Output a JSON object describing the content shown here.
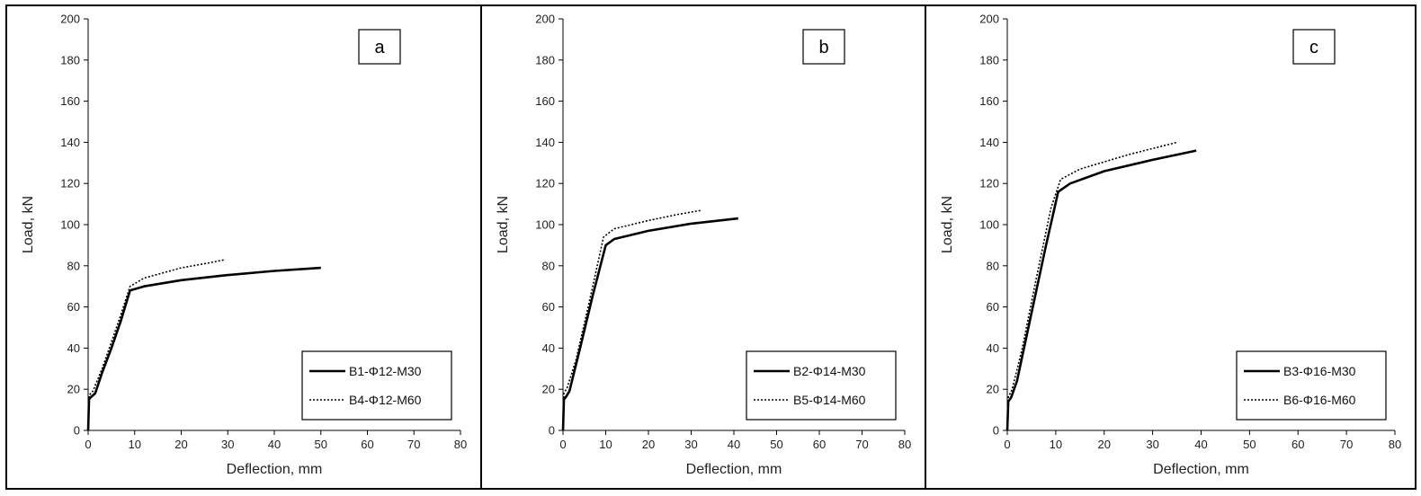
{
  "chart_data": [
    {
      "type": "line",
      "panel_label": "a",
      "xlabel": "Deflection, mm",
      "ylabel": "Load, kN",
      "xlim": [
        0,
        80
      ],
      "ylim": [
        0,
        200
      ],
      "xticks": [
        0,
        10,
        20,
        30,
        40,
        50,
        60,
        70,
        80
      ],
      "yticks": [
        0,
        20,
        40,
        60,
        80,
        100,
        120,
        140,
        160,
        180,
        200
      ],
      "grid": false,
      "legend_position": "bottom-right",
      "panel_label_position": "top-right",
      "series": [
        {
          "name": "B1-Φ12-M30",
          "style": "solid",
          "color": "#000000",
          "x": [
            0,
            0.2,
            0.5,
            1.5,
            3,
            5,
            7,
            9,
            12,
            20,
            30,
            40,
            50
          ],
          "y": [
            0,
            15,
            16,
            18,
            28,
            40,
            53,
            68,
            70,
            73,
            75.5,
            77.5,
            79
          ]
        },
        {
          "name": "B4-Φ12-M60",
          "style": "dotted",
          "color": "#000000",
          "x": [
            0,
            0.2,
            1,
            3,
            5,
            7,
            9,
            12,
            20,
            25,
            29.5
          ],
          "y": [
            0,
            17,
            19,
            30,
            43,
            56,
            70,
            74,
            79,
            81,
            83
          ]
        }
      ]
    },
    {
      "type": "line",
      "panel_label": "b",
      "xlabel": "Deflection, mm",
      "ylabel": "Load, kN",
      "xlim": [
        0,
        80
      ],
      "ylim": [
        0,
        200
      ],
      "xticks": [
        0,
        10,
        20,
        30,
        40,
        50,
        60,
        70,
        80
      ],
      "yticks": [
        0,
        20,
        40,
        60,
        80,
        100,
        120,
        140,
        160,
        180,
        200
      ],
      "grid": false,
      "legend_position": "bottom-right",
      "panel_label_position": "top-right",
      "series": [
        {
          "name": "B2-Φ14-M30",
          "style": "solid",
          "color": "#000000",
          "x": [
            0,
            0.2,
            0.6,
            1.5,
            4,
            7,
            10,
            12,
            20,
            30,
            41
          ],
          "y": [
            0,
            15,
            16,
            19,
            40,
            66,
            90,
            93,
            97,
            100.5,
            103
          ]
        },
        {
          "name": "B5-Φ14-M60",
          "style": "dotted",
          "color": "#000000",
          "x": [
            0,
            0.2,
            1,
            3,
            6,
            9.5,
            12,
            20,
            27,
            32.5
          ],
          "y": [
            0,
            18,
            21,
            34,
            61,
            94,
            98,
            102,
            105,
            107
          ]
        }
      ]
    },
    {
      "type": "line",
      "panel_label": "c",
      "xlabel": "Deflection, mm",
      "ylabel": "Load, kN",
      "xlim": [
        0,
        80
      ],
      "ylim": [
        0,
        200
      ],
      "xticks": [
        0,
        10,
        20,
        30,
        40,
        50,
        60,
        70,
        80
      ],
      "yticks": [
        0,
        20,
        40,
        60,
        80,
        100,
        120,
        140,
        160,
        180,
        200
      ],
      "grid": false,
      "legend_position": "bottom-right",
      "panel_label_position": "top-right",
      "series": [
        {
          "name": "B3-Φ16-M30",
          "style": "solid",
          "color": "#000000",
          "x": [
            0,
            0.2,
            0.8,
            2,
            5,
            8,
            10.5,
            13,
            20,
            30,
            39
          ],
          "y": [
            0,
            14,
            16,
            24,
            57,
            90,
            116,
            120,
            126,
            131.5,
            136
          ]
        },
        {
          "name": "B6-Φ16-M60",
          "style": "dotted",
          "color": "#000000",
          "x": [
            0,
            0.2,
            1,
            3,
            6,
            9,
            11,
            15,
            25,
            35
          ],
          "y": [
            0,
            16,
            20,
            39,
            74,
            108,
            122,
            127,
            134,
            140
          ]
        }
      ]
    }
  ]
}
